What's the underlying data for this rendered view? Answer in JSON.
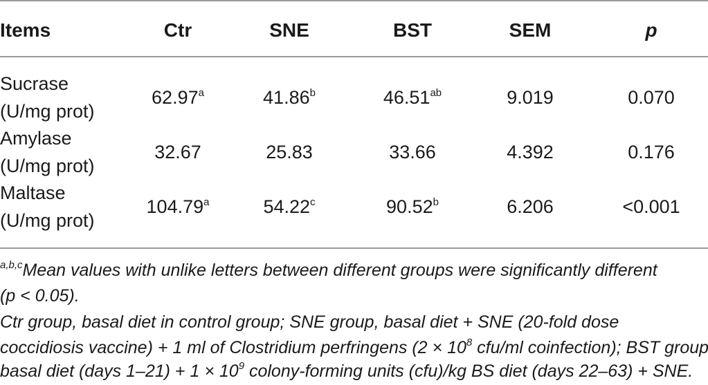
{
  "table": {
    "headers": [
      "Items",
      "Ctr",
      "SNE",
      "BST",
      "SEM",
      "p"
    ],
    "rows": [
      {
        "item_line1": "Sucrase",
        "item_line2": "(U/mg prot)",
        "ctr": "62.97",
        "ctr_sup": "a",
        "sne": "41.86",
        "sne_sup": "b",
        "bst": "46.51",
        "bst_sup": "ab",
        "sem": "9.019",
        "p": "0.070"
      },
      {
        "item_line1": "Amylase",
        "item_line2": "(U/mg prot)",
        "ctr": "32.67",
        "ctr_sup": "",
        "sne": "25.83",
        "sne_sup": "",
        "bst": "33.66",
        "bst_sup": "",
        "sem": "4.392",
        "p": "0.176"
      },
      {
        "item_line1": "Maltase",
        "item_line2": "(U/mg prot)",
        "ctr": "104.79",
        "ctr_sup": "a",
        "sne": "54.22",
        "sne_sup": "c",
        "bst": "90.52",
        "bst_sup": "b",
        "sem": "6.206",
        "p": "<0.001"
      }
    ]
  },
  "footnotes": {
    "sup_marker": "a,b,c",
    "line1": "Mean values with unlike letters between different groups were significantly different",
    "line2": "(p < 0.05).",
    "line3": "Ctr group, basal diet in control group; SNE group, basal diet + SNE (20-fold dose",
    "line4_a": "coccidiosis vaccine) + 1 ml of Clostridium perfringens (2 × 10",
    "line4_exp": "8",
    "line4_b": " cfu/ml coinfection); BST group,",
    "line5_a": "basal diet (days 1–21) + 1 × 10",
    "line5_exp": "9",
    "line5_b": " colony-forming units (cfu)/kg BS diet (days 22–63) + SNE."
  }
}
